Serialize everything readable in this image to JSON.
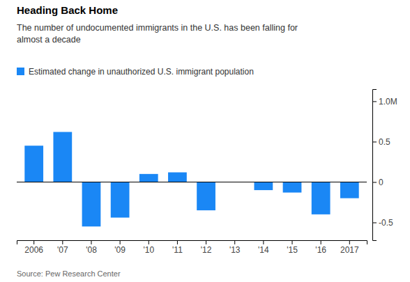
{
  "chart_data": {
    "type": "bar",
    "title": "Heading Back Home",
    "subtitle": "The number of undocumented immigrants in the U.S. has been falling for\nalmost a decade",
    "source": "Source: Pew Research Center",
    "categories": [
      "2006",
      "'07",
      "'08",
      "'09",
      "'10",
      "'11",
      "'12",
      "'13",
      "'14",
      "'15",
      "'16",
      "2017"
    ],
    "series": [
      {
        "name": "Estimated change in unauthorized U.S. immigrant population",
        "color": "#1a87f5",
        "values": [
          0.45,
          0.62,
          -0.55,
          -0.44,
          0.1,
          0.12,
          -0.35,
          0.0,
          -0.1,
          -0.13,
          -0.4,
          -0.2
        ]
      }
    ],
    "ylim": [
      -0.72,
      1.15
    ],
    "yticks": [
      -0.5,
      0,
      0.5,
      {
        "value": 1.0,
        "label": "1.0M"
      }
    ],
    "grid": false,
    "legend": "top-left"
  }
}
